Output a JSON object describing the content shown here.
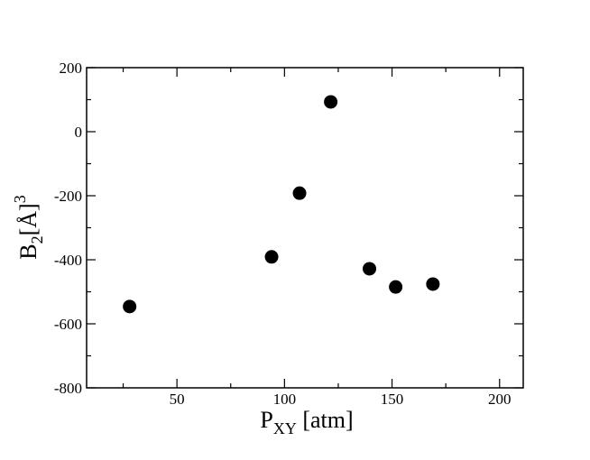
{
  "chart_data": {
    "type": "scatter",
    "x_label": {
      "main": "P",
      "sub": "XY",
      "rest": " [atm]"
    },
    "y_label": {
      "main": "B",
      "sub": "2",
      "rest": "[Å]",
      "sup": "3"
    },
    "series": [
      {
        "color": "#000000",
        "x": [
          28,
          94,
          107,
          121.5,
          139.5,
          151.7,
          169
        ],
        "values": [
          -546,
          -391,
          -192,
          93,
          -428,
          -485,
          -476
        ]
      }
    ],
    "xlim": [
      8,
      211
    ],
    "ylim": [
      -800,
      200
    ],
    "xticks": [
      50,
      100,
      150,
      200
    ],
    "yticks": [
      -800,
      -600,
      -400,
      -200,
      0,
      200
    ],
    "xticks_minor": [
      25,
      75,
      125,
      175
    ],
    "yticks_minor": [
      -700,
      -500,
      -300,
      -100,
      100
    ]
  }
}
